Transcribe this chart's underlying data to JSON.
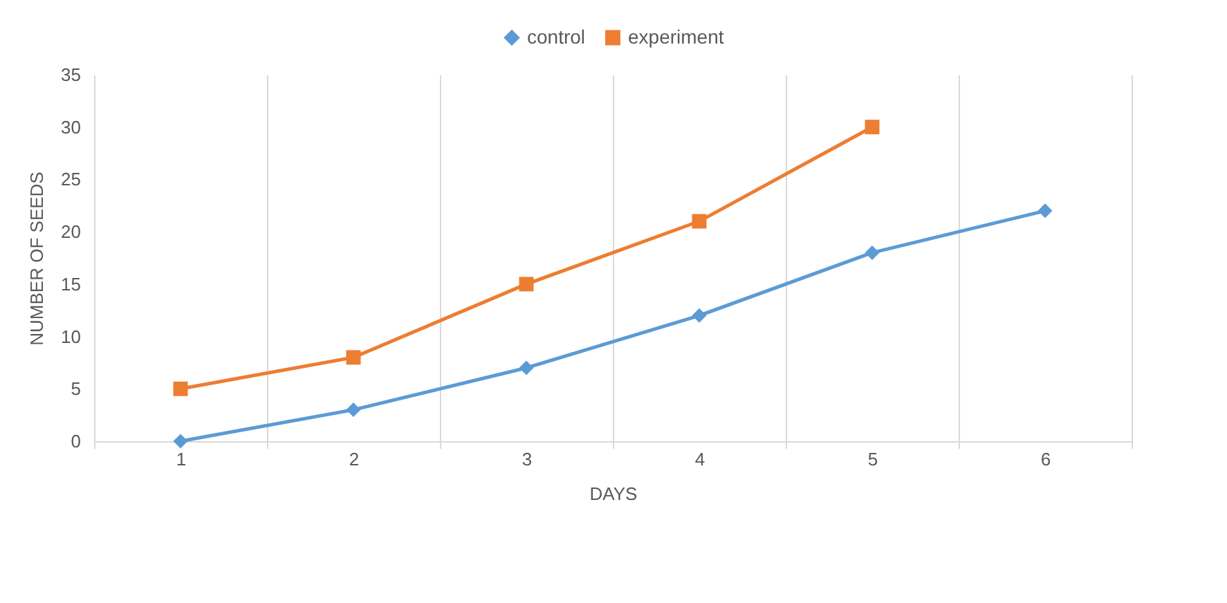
{
  "chart_data": {
    "type": "line",
    "xlabel": "DAYS",
    "ylabel": "NUMBER OF SEEDS",
    "categories": [
      "1",
      "2",
      "3",
      "4",
      "5",
      "6"
    ],
    "series": [
      {
        "name": "control",
        "color": "#5b9bd5",
        "marker": "diamond",
        "values": [
          0,
          3,
          7,
          12,
          18,
          22
        ]
      },
      {
        "name": "experiment",
        "color": "#ed7d31",
        "marker": "square",
        "values": [
          5,
          8,
          15,
          21,
          30,
          null
        ]
      }
    ],
    "ylim": [
      0,
      35
    ],
    "yticks": [
      0,
      5,
      10,
      15,
      20,
      25,
      30,
      35
    ],
    "grid": "x",
    "legend": "top",
    "line_style": "solid"
  }
}
